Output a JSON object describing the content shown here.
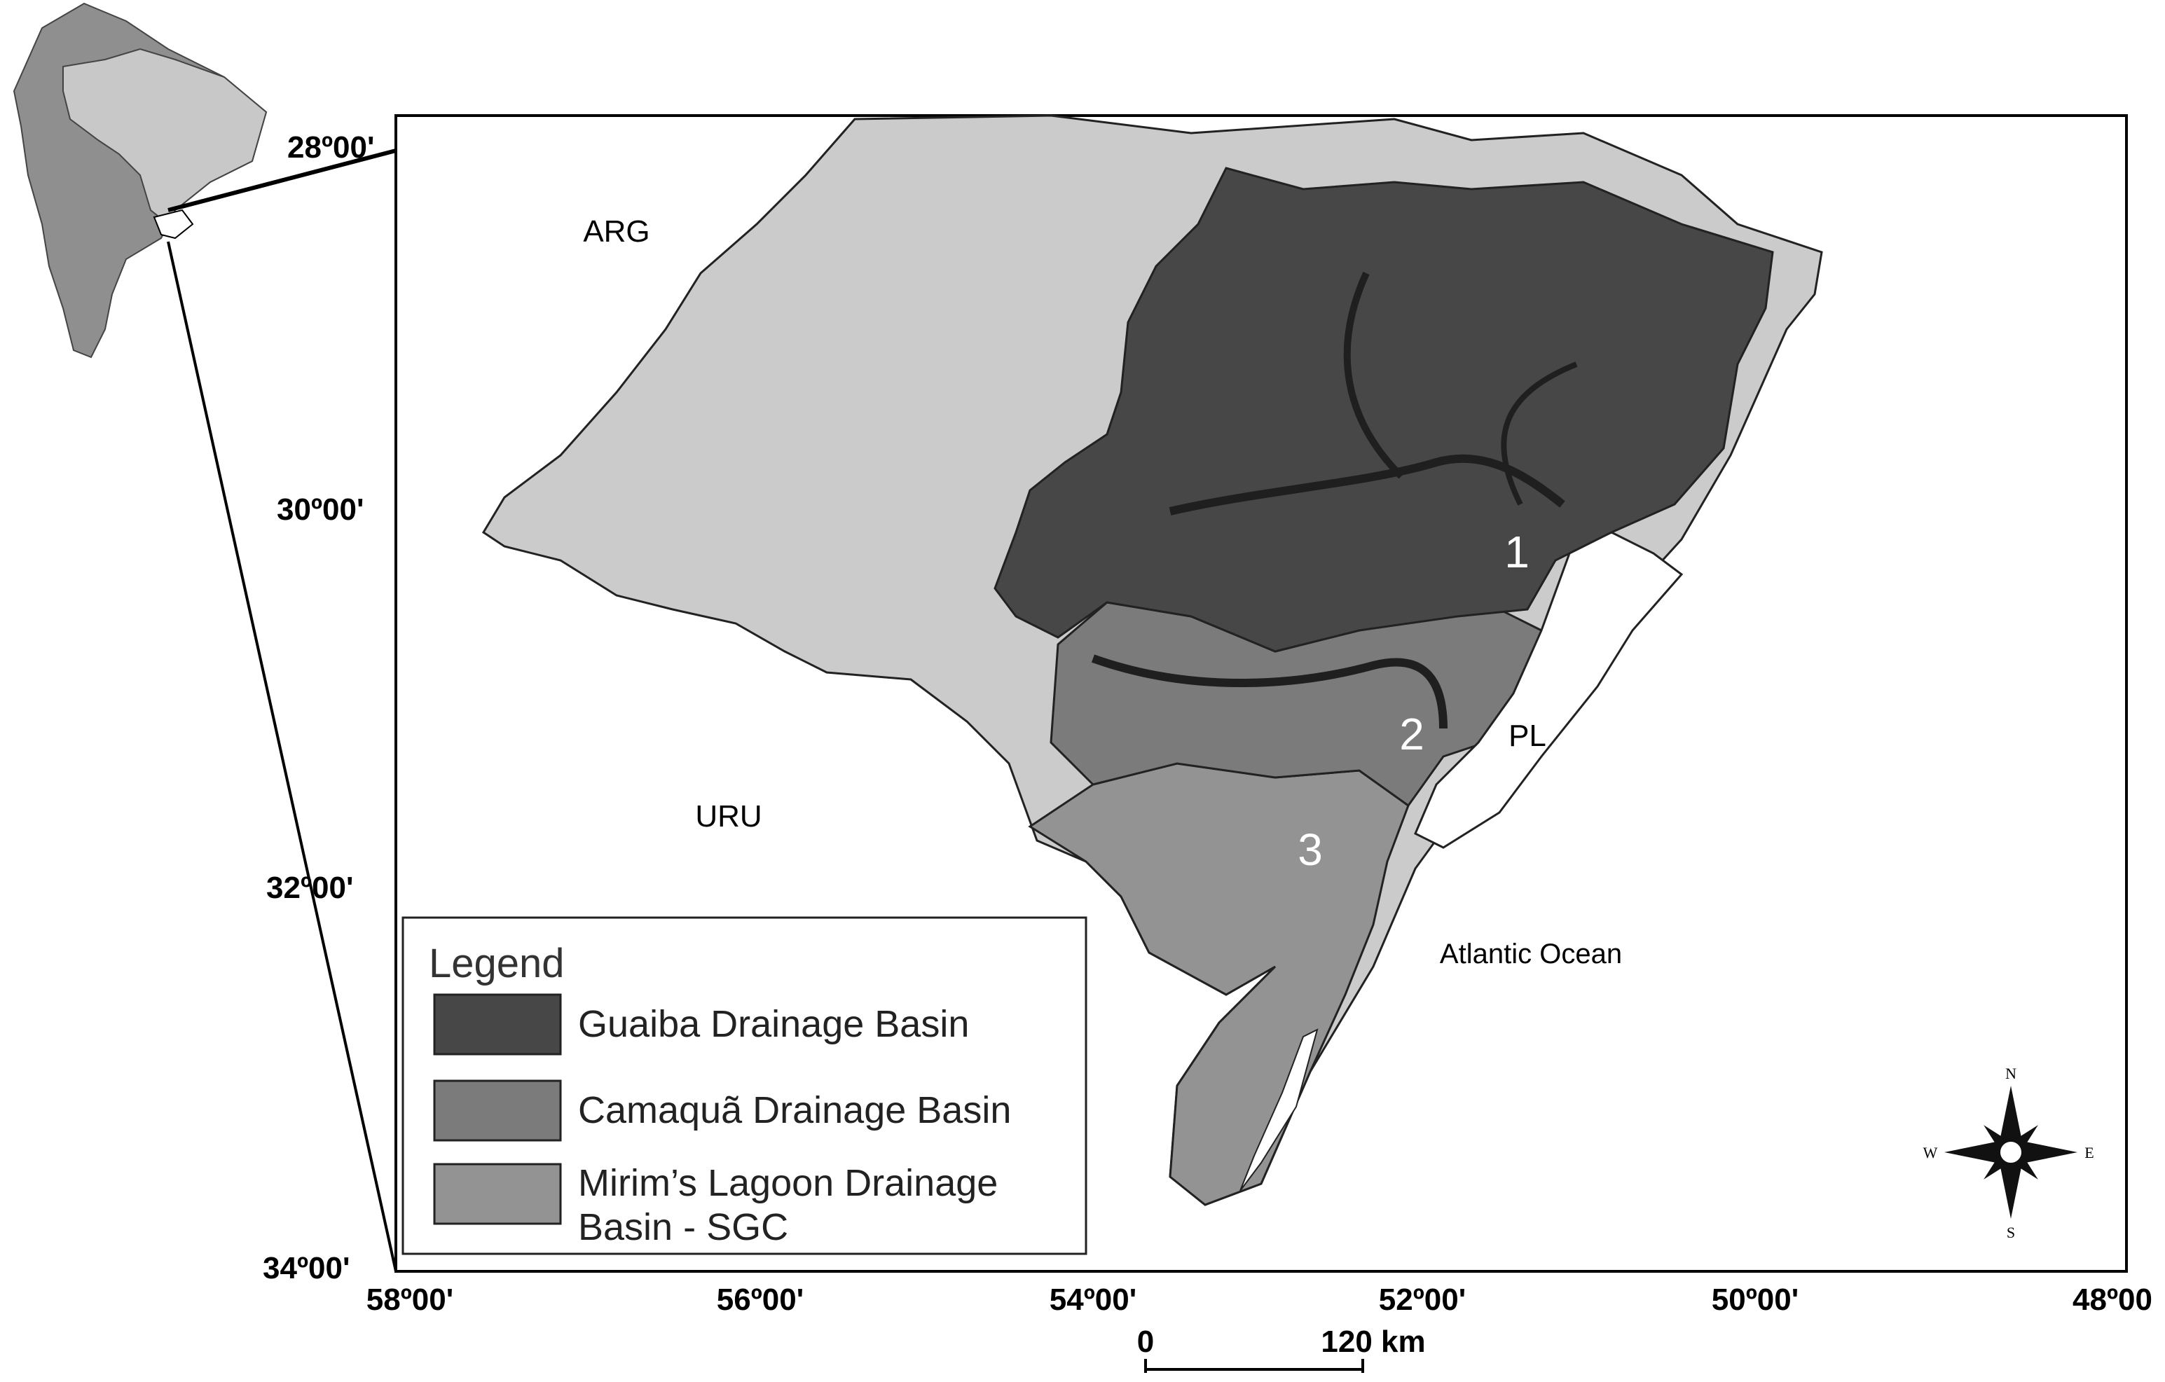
{
  "map": {
    "country_labels": {
      "argentina": "ARG",
      "uruguay": "URU"
    },
    "water_labels": {
      "patos_lagoon": "PL",
      "ocean": "Atlantic Ocean"
    },
    "basin_numbers": [
      "1",
      "2",
      "3"
    ],
    "latitude_labels": [
      "28º00'",
      "30º00'",
      "32º00'",
      "34º00'"
    ],
    "longitude_labels": [
      "58º00'",
      "56º00'",
      "54º00'",
      "52º00'",
      "50º00'",
      "48º00"
    ],
    "scale_bar": {
      "start": "0",
      "end": "120 km"
    },
    "compass": {
      "n": "N",
      "s": "S",
      "e": "E",
      "w": "W"
    },
    "colors": {
      "guaiba": "#474747",
      "camaqua": "#7b7b7b",
      "mirim": "#939393",
      "land": "#cbcbcb",
      "water": "#ffffff",
      "continent_other": "#8f8f8f",
      "continent_brazil": "#c8c8c8"
    }
  },
  "legend": {
    "title": "Legend",
    "items": [
      {
        "label": "Guaiba Drainage Basin",
        "color": "#474747"
      },
      {
        "label": "Camaquã Drainage Basin",
        "color": "#7b7b7b"
      },
      {
        "label": "Mirim’s Lagoon Drainage",
        "label2": "Basin - SGC",
        "color": "#939393"
      }
    ]
  }
}
